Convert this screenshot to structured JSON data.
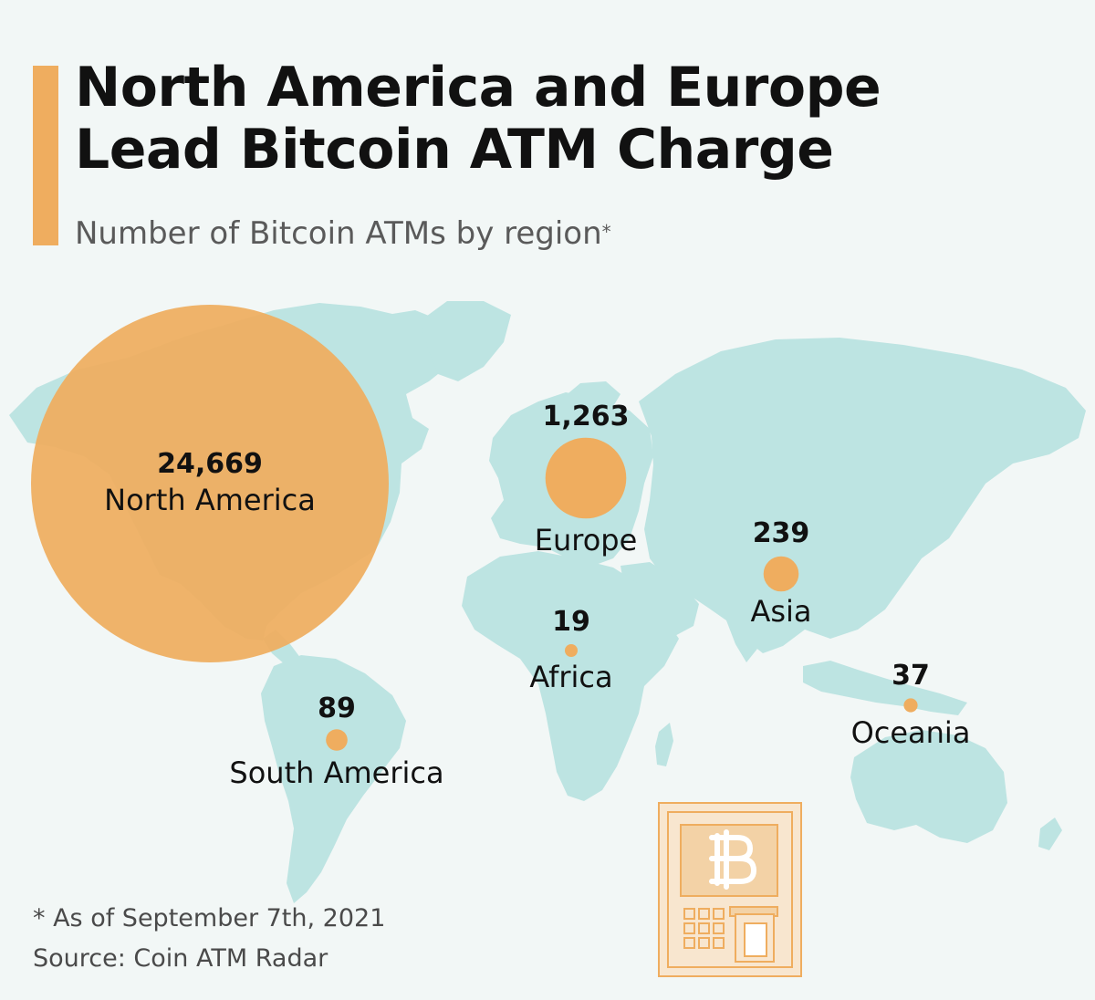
{
  "header": {
    "title_line1": "North America and Europe",
    "title_line2": "Lead Bitcoin ATM Charge",
    "subtitle": "Number of Bitcoin ATMs by region",
    "subtitle_marker": "*"
  },
  "chart_data": {
    "type": "map-bubble",
    "metric": "Number of Bitcoin ATMs",
    "regions": [
      {
        "id": "north-america",
        "name": "North America",
        "label": "24,669",
        "value": 24669
      },
      {
        "id": "europe",
        "name": "Europe",
        "label": "1,263",
        "value": 1263
      },
      {
        "id": "asia",
        "name": "Asia",
        "label": "239",
        "value": 239
      },
      {
        "id": "south-america",
        "name": "South America",
        "label": "89",
        "value": 89
      },
      {
        "id": "oceania",
        "name": "Oceania",
        "label": "37",
        "value": 37
      },
      {
        "id": "africa",
        "name": "Africa",
        "label": "19",
        "value": 19
      }
    ]
  },
  "footer": {
    "note": "* As of September 7th, 2021",
    "source": "Source: Coin ATM Radar"
  },
  "colors": {
    "accent": "#efad5f",
    "land": "#bde4e2",
    "background": "#f2f7f6",
    "text": "#111111",
    "muted_text": "#5a5a5a"
  },
  "icons": {
    "atm": "bitcoin-atm-icon",
    "bitcoin": "bitcoin-symbol-icon"
  }
}
